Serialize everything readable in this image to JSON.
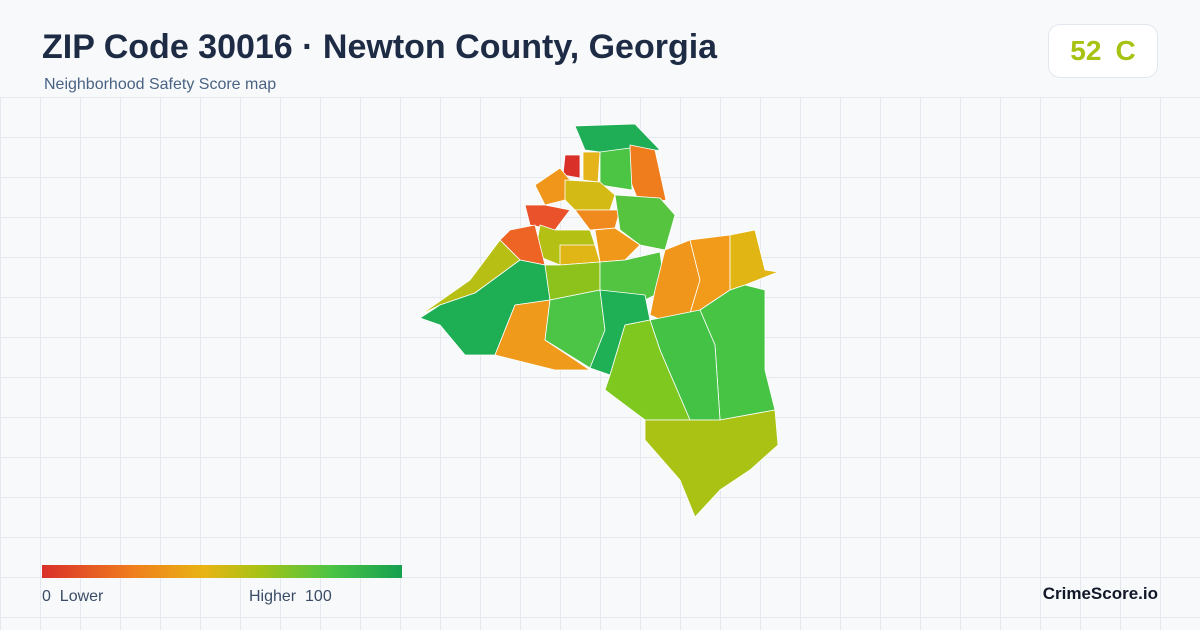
{
  "header": {
    "title": "ZIP Code 30016 · Newton County, Georgia",
    "subtitle": "Neighborhood Safety Score map"
  },
  "score": {
    "value": 52,
    "grade": "C"
  },
  "legend": {
    "min": 0,
    "min_label": "Lower",
    "max_label": "Higher",
    "max": 100
  },
  "brand": "CrimeScore.io"
}
